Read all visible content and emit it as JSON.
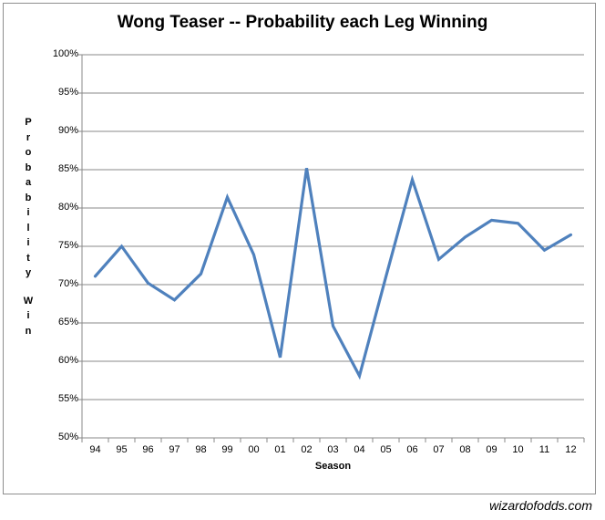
{
  "title": "Wong Teaser -- Probability each Leg Winning",
  "watermark": "wizardofodds.com",
  "colors": {
    "line": "#4F81BD",
    "grid": "#898989",
    "axis": "#898989",
    "border": "#8e8e8e",
    "text": "#000000"
  },
  "chart_data": {
    "type": "line",
    "title": "Wong Teaser -- Probability each Leg Winning",
    "xlabel": "Season",
    "ylabel": "Probability Win",
    "categories": [
      "94",
      "95",
      "96",
      "97",
      "98",
      "99",
      "00",
      "01",
      "02",
      "03",
      "04",
      "05",
      "06",
      "07",
      "08",
      "09",
      "10",
      "11",
      "12"
    ],
    "series": [
      {
        "name": "Probability each Leg Winning",
        "values": [
          71.1,
          75.0,
          70.2,
          68.0,
          71.4,
          81.4,
          73.9,
          60.5,
          85.2,
          64.6,
          58.1,
          71.0,
          83.7,
          73.3,
          76.2,
          78.4,
          78.0,
          74.5,
          76.5
        ]
      }
    ],
    "ylim": [
      50,
      100
    ],
    "ytick_step": 5,
    "ytick_labels": [
      "100%",
      "95%",
      "90%",
      "85%",
      "80%",
      "75%",
      "70%",
      "65%",
      "60%",
      "55%",
      "50%"
    ],
    "grid": true,
    "legend": false
  }
}
